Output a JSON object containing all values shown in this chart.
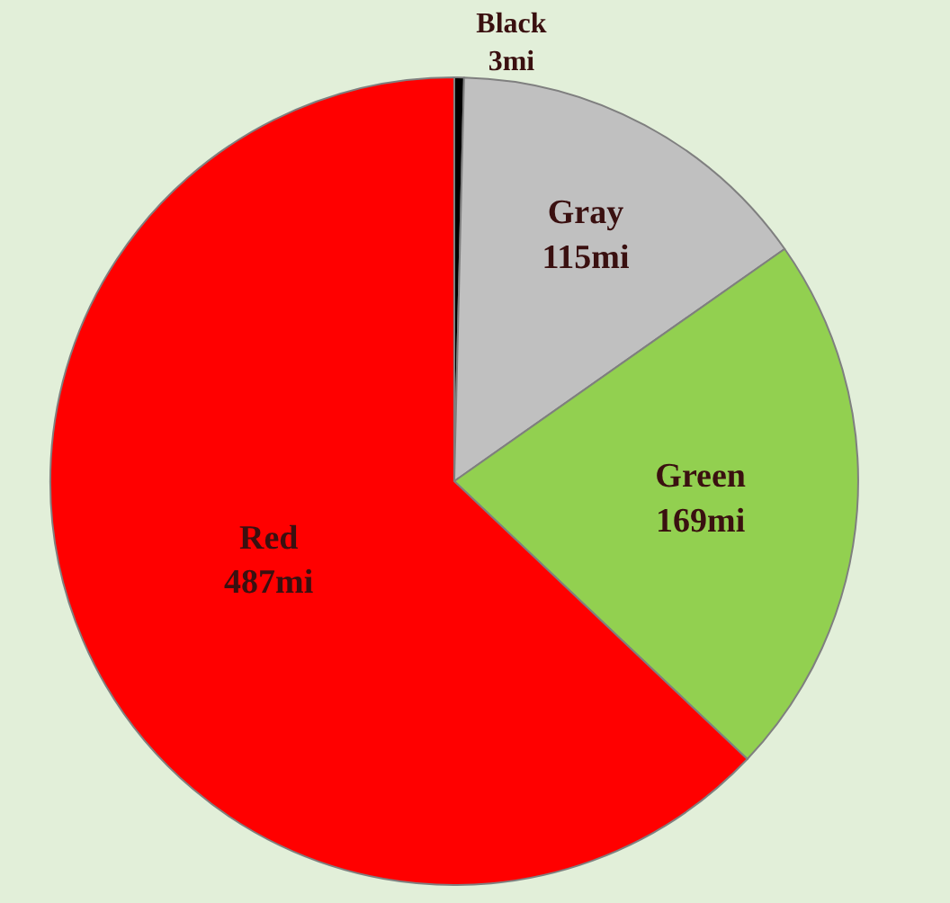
{
  "chart_data": {
    "type": "pie",
    "categories": [
      "Black",
      "Gray",
      "Green",
      "Red"
    ],
    "values": [
      3,
      115,
      169,
      487
    ],
    "value_labels": [
      "3mi",
      "115mi",
      "169mi",
      "487mi"
    ],
    "colors": [
      "#000000",
      "#c0c0c0",
      "#92d050",
      "#ff0000"
    ],
    "legend": false
  }
}
